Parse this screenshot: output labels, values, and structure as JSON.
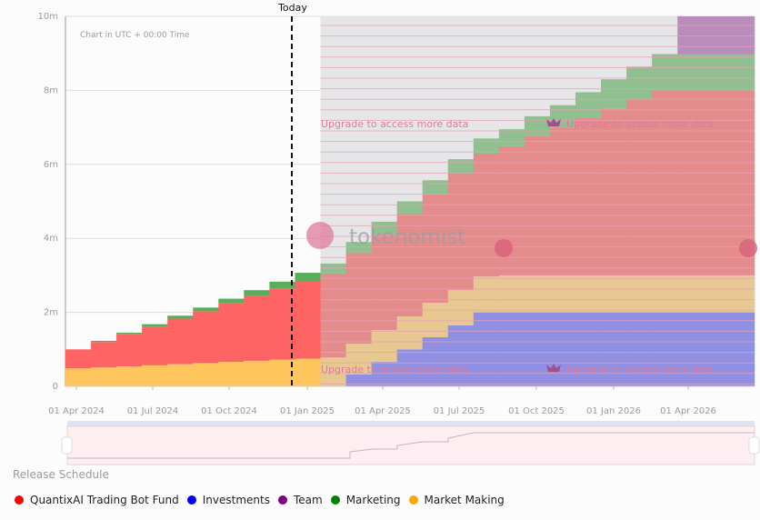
{
  "chart_data": {
    "type": "area",
    "step": true,
    "stacked": true,
    "title": "Release Schedule",
    "note": "Chart in UTC + 00:00 Time",
    "today_label": "Today",
    "locked_label": "Upgrade to access more data",
    "watermark": "tokenomist",
    "ylim": [
      0,
      10000000
    ],
    "y_ticks": [
      "0",
      "2m",
      "4m",
      "6m",
      "8m",
      "10m"
    ],
    "x_ticks": [
      "01 Apr 2024",
      "01 Jul 2024",
      "01 Oct 2024",
      "01 Jan 2025",
      "01 Apr 2025",
      "01 Jul 2025",
      "01 Oct 2025",
      "01 Jan 2026",
      "01 Apr 2026"
    ],
    "categories": [
      "2024-03",
      "2024-04",
      "2024-05",
      "2024-06",
      "2024-07",
      "2024-08",
      "2024-09",
      "2024-10",
      "2024-11",
      "2024-12",
      "2025-01",
      "2025-02",
      "2025-03",
      "2025-04",
      "2025-05",
      "2025-06",
      "2025-07",
      "2025-08",
      "2025-09",
      "2025-10",
      "2025-11",
      "2025-12",
      "2026-01",
      "2026-02",
      "2026-03"
    ],
    "locked_from": "2025-01",
    "grid": true,
    "legend_position": "bottom-left",
    "series": [
      {
        "name": "Investments",
        "color": "#0000ff",
        "values": [
          0,
          0,
          0,
          0,
          0,
          0,
          0,
          0,
          0,
          0,
          0,
          0.32,
          0.66,
          1.0,
          1.33,
          1.65,
          2.0,
          2.0,
          2.0,
          2.0,
          2.0,
          2.0,
          2.0,
          2.0,
          2.0
        ]
      },
      {
        "name": "Market Making",
        "color": "#ffa500",
        "values": [
          0.49,
          0.51,
          0.54,
          0.57,
          0.6,
          0.63,
          0.66,
          0.69,
          0.72,
          0.75,
          0.78,
          0.83,
          0.86,
          0.89,
          0.93,
          0.95,
          0.97,
          1.0,
          1.0,
          1.0,
          1.0,
          1.0,
          1.0,
          1.0,
          1.0
        ]
      },
      {
        "name": "QuantixAI Trading Bot Fund",
        "color": "#ff0000",
        "values": [
          0.51,
          0.69,
          0.88,
          1.05,
          1.23,
          1.4,
          1.58,
          1.75,
          1.93,
          2.1,
          2.27,
          2.45,
          2.58,
          2.78,
          2.94,
          3.15,
          3.32,
          3.49,
          3.76,
          4.0,
          4.27,
          4.5,
          4.74,
          5.0,
          5.0
        ]
      },
      {
        "name": "Marketing",
        "color": "#008000",
        "values": [
          0,
          0.03,
          0.03,
          0.06,
          0.08,
          0.1,
          0.13,
          0.16,
          0.18,
          0.22,
          0.27,
          0.3,
          0.35,
          0.33,
          0.37,
          0.39,
          0.41,
          0.46,
          0.54,
          0.6,
          0.68,
          0.8,
          0.9,
          0.98,
          0.98
        ]
      },
      {
        "name": "Team",
        "color": "#800080",
        "values": [
          0,
          0,
          0,
          0,
          0,
          0,
          0,
          0,
          0,
          0,
          0,
          0,
          0,
          0,
          0,
          0,
          0,
          0,
          0,
          0,
          0,
          0,
          0,
          0,
          1.02
        ]
      }
    ],
    "value_unit": "m"
  },
  "legend": [
    {
      "name": "QuantixAI Trading Bot Fund",
      "color": "#ff0000"
    },
    {
      "name": "Investments",
      "color": "#0000ff"
    },
    {
      "name": "Team",
      "color": "#800080"
    },
    {
      "name": "Marketing",
      "color": "#008000"
    },
    {
      "name": "Market Making",
      "color": "#ffa500"
    }
  ]
}
